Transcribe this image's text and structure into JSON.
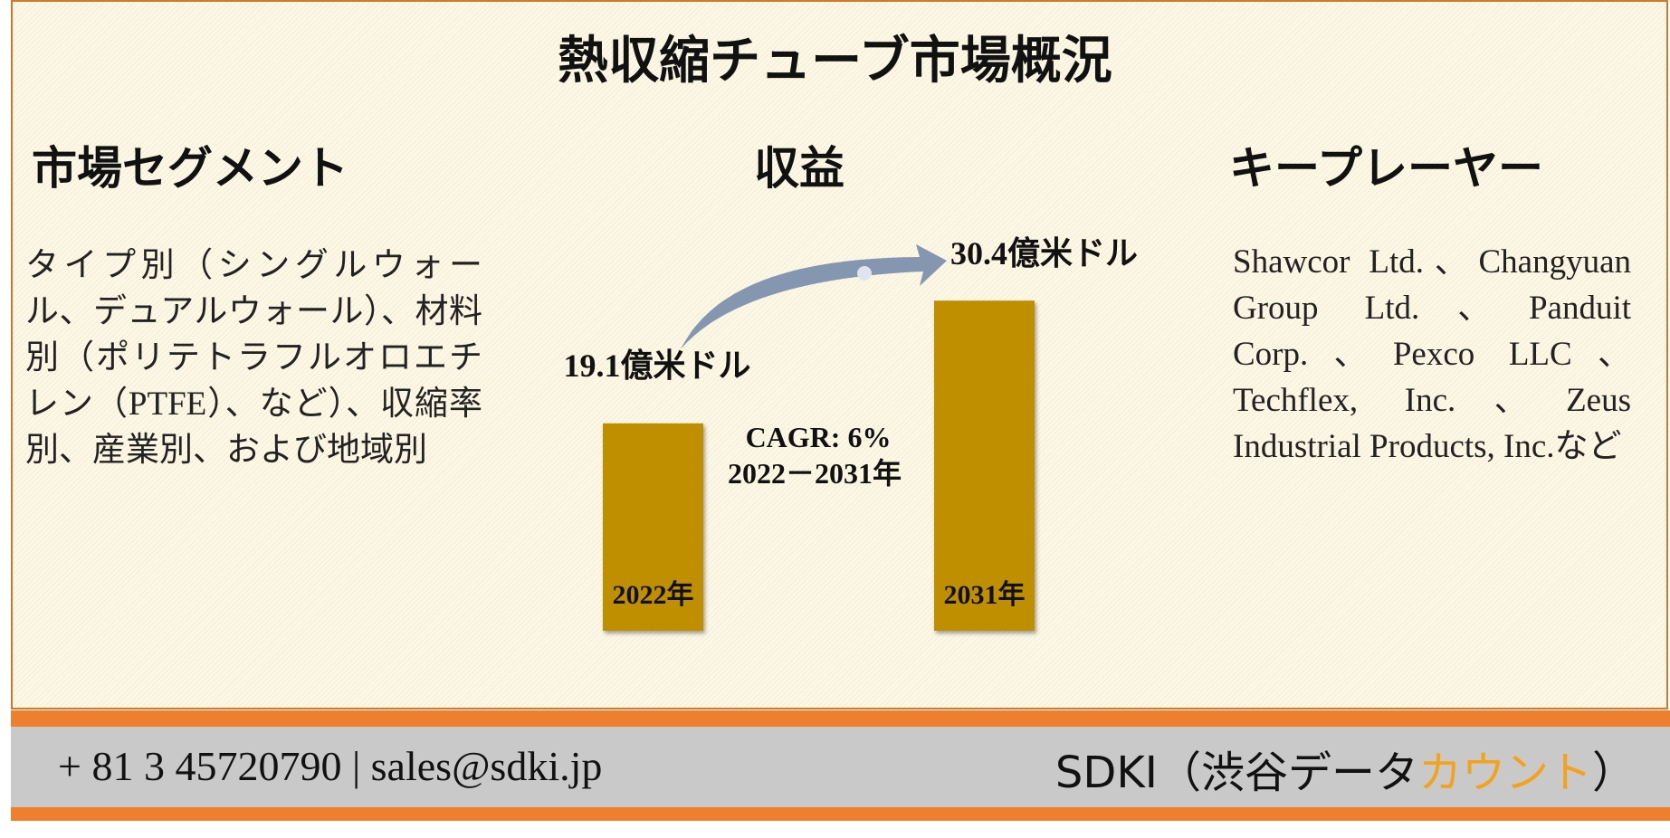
{
  "title": "熱収縮チューブ市場概況",
  "segments": {
    "heading": "市場セグメント",
    "text": "タイプ別（シングルウォール、デュアルウォール）、材料別（ポリテトラフルオロエチレン（PTFE）、など）、収縮率別、産業別、および地域別"
  },
  "revenue": {
    "heading": "収益",
    "bars": [
      {
        "year": "2022年",
        "value": 19.1,
        "value_label": "19.1億米ドル"
      },
      {
        "year": "2031年",
        "value": 30.4,
        "value_label": "30.4億米ドル"
      }
    ],
    "cagr": "CAGR: 6%",
    "period": "2022－2031年",
    "color": "#bf8f00"
  },
  "players": {
    "heading": "キープレーヤー",
    "text": "Shawcor Ltd.、Changyuan Group Ltd.、Panduit Corp.、Pexco LLC、Techflex, Inc.、Zeus Industrial Products, Inc.など"
  },
  "footer": {
    "contact": "+ 81 3 45720790 | sales@sdki.jp",
    "brand": "SDKI（渋谷データ",
    "brand_highlight": "カウント",
    "brand_end": "）"
  }
}
